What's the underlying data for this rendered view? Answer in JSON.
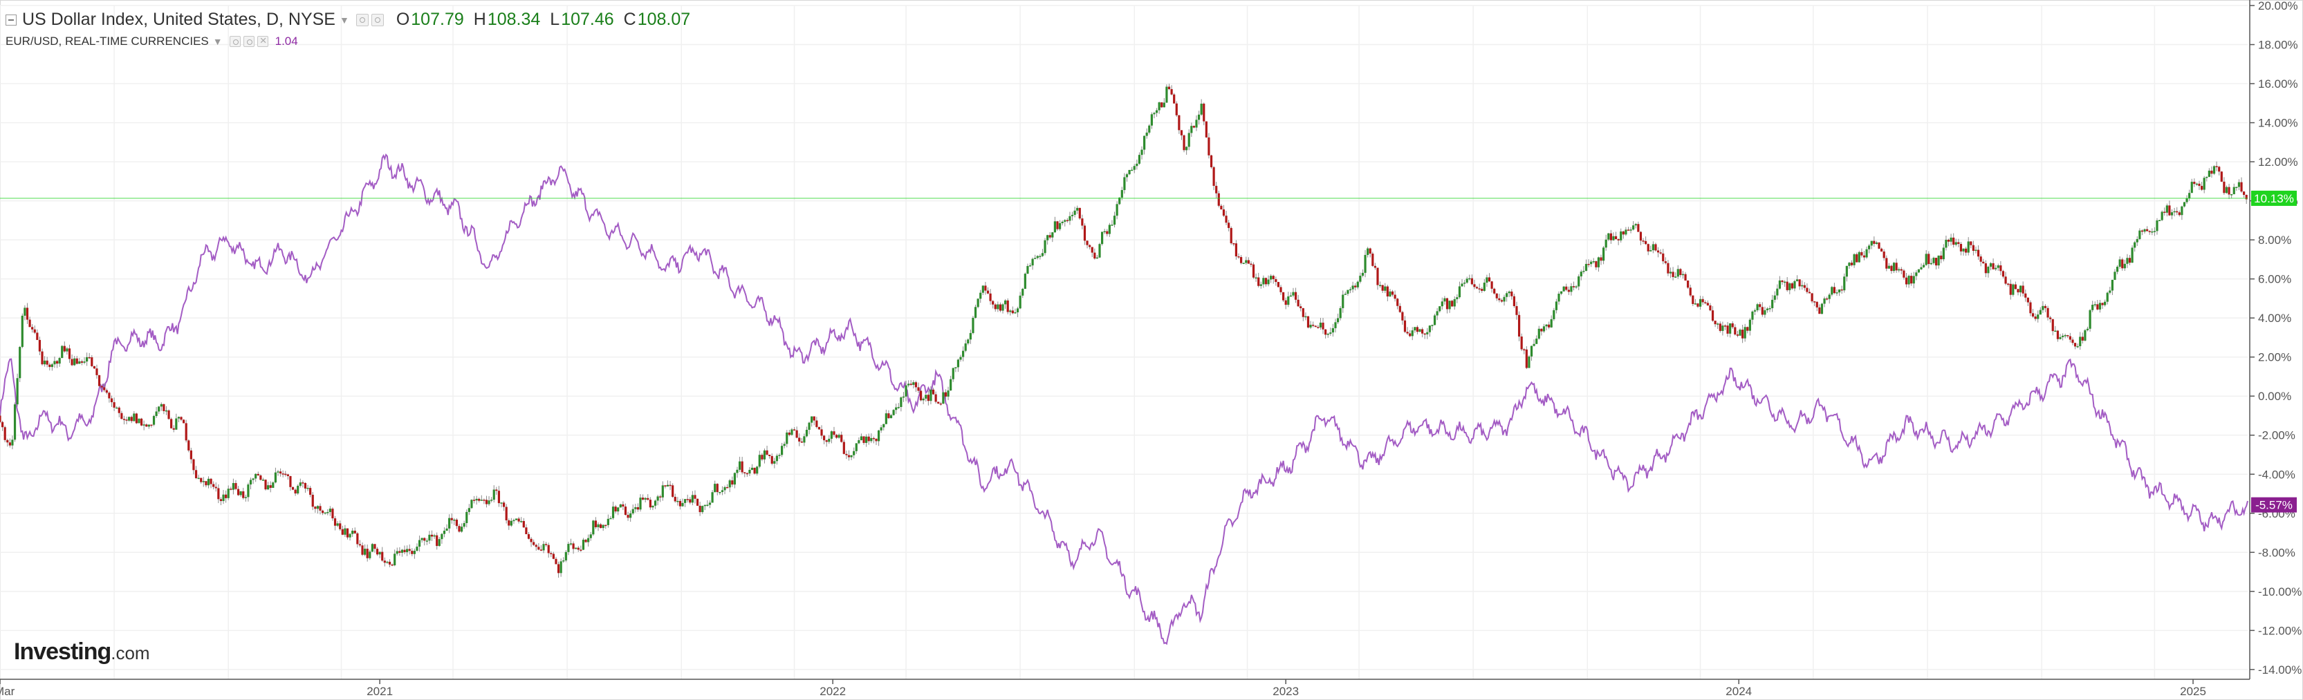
{
  "legend": {
    "main_title": "US Dollar Index, United States, D, NYSE",
    "ohlc": [
      {
        "key": "O",
        "value": "107.79"
      },
      {
        "key": "H",
        "value": "108.34"
      },
      {
        "key": "L",
        "value": "107.46"
      },
      {
        "key": "C",
        "value": "108.07"
      }
    ],
    "sub_title": "EUR/USD, REAL-TIME CURRENCIES",
    "sub_value": "1.04"
  },
  "logo": {
    "brand": "Investing",
    "suffix": ".com"
  },
  "colors": {
    "up": "#2e8b2e",
    "down": "#b01818",
    "wick": "#8a8a8a",
    "overlay": "#a35cc4",
    "last_dxy": "#1fd41f",
    "last_eur": "#8a1f8f",
    "grid": "#f0f0f0",
    "axis_text": "#555555"
  },
  "chart_data": {
    "type": "candlestick",
    "overlay_type": "line",
    "y_unit": "percent change",
    "ylim": [
      -14.5,
      20
    ],
    "y_ticks": [
      {
        "v": 20,
        "label": "20.00%"
      },
      {
        "v": 18,
        "label": "18.00%"
      },
      {
        "v": 16,
        "label": "16.00%"
      },
      {
        "v": 14,
        "label": "14.00%"
      },
      {
        "v": 12,
        "label": "12.00%"
      },
      {
        "v": 10,
        "label": "10.00%"
      },
      {
        "v": 8,
        "label": "8.00%"
      },
      {
        "v": 6,
        "label": "6.00%"
      },
      {
        "v": 4,
        "label": "4.00%"
      },
      {
        "v": 2,
        "label": "2.00%"
      },
      {
        "v": 0,
        "label": "0.00%"
      },
      {
        "v": -2,
        "label": "-2.00%"
      },
      {
        "v": -4,
        "label": "-4.00%"
      },
      {
        "v": -6,
        "label": "-6.00%"
      },
      {
        "v": -8,
        "label": "-8.00%"
      },
      {
        "v": -10,
        "label": "-10.00%"
      },
      {
        "v": -12,
        "label": "-12.00%"
      },
      {
        "v": -14,
        "label": "-14.00%"
      }
    ],
    "xlim": [
      "2020-03-01",
      "2025-02-14"
    ],
    "x_ticks": [
      {
        "date": "2020-03-01",
        "label": "Mar"
      },
      {
        "date": "2021-01-01",
        "label": "2021"
      },
      {
        "date": "2022-01-01",
        "label": "2022"
      },
      {
        "date": "2023-01-01",
        "label": "2023"
      },
      {
        "date": "2024-01-01",
        "label": "2024"
      },
      {
        "date": "2025-01-01",
        "label": "2025"
      }
    ],
    "series": [
      {
        "name": "US Dollar Index",
        "style": "candles",
        "last_label": "10.13%",
        "last_value": 10.13,
        "points": [
          [
            "2020-03-01",
            -1.0
          ],
          [
            "2020-03-10",
            -3.0
          ],
          [
            "2020-03-20",
            4.8
          ],
          [
            "2020-04-05",
            1.5
          ],
          [
            "2020-04-25",
            2.2
          ],
          [
            "2020-05-15",
            1.5
          ],
          [
            "2020-06-01",
            -0.8
          ],
          [
            "2020-06-20",
            -1.5
          ],
          [
            "2020-07-10",
            -0.8
          ],
          [
            "2020-07-25",
            -1.5
          ],
          [
            "2020-08-10",
            -4.5
          ],
          [
            "2020-09-01",
            -5.0
          ],
          [
            "2020-09-25",
            -4.5
          ],
          [
            "2020-10-15",
            -4.0
          ],
          [
            "2020-11-05",
            -5.0
          ],
          [
            "2020-12-01",
            -6.8
          ],
          [
            "2021-01-06",
            -8.5
          ],
          [
            "2021-02-05",
            -7.5
          ],
          [
            "2021-03-05",
            -6.5
          ],
          [
            "2021-03-31",
            -5.0
          ],
          [
            "2021-04-20",
            -6.5
          ],
          [
            "2021-05-25",
            -8.5
          ],
          [
            "2021-06-20",
            -7.0
          ],
          [
            "2021-07-05",
            -6.0
          ],
          [
            "2021-08-05",
            -5.5
          ],
          [
            "2021-08-20",
            -4.8
          ],
          [
            "2021-09-15",
            -5.8
          ],
          [
            "2021-10-15",
            -4.0
          ],
          [
            "2021-11-15",
            -3.0
          ],
          [
            "2021-12-01",
            -2.0
          ],
          [
            "2021-12-20",
            -1.5
          ],
          [
            "2022-01-14",
            -2.8
          ],
          [
            "2022-02-05",
            -2.0
          ],
          [
            "2022-03-07",
            0.8
          ],
          [
            "2022-03-25",
            -0.5
          ],
          [
            "2022-04-15",
            2.0
          ],
          [
            "2022-05-01",
            5.5
          ],
          [
            "2022-05-25",
            4.0
          ],
          [
            "2022-06-14",
            7.5
          ],
          [
            "2022-07-14",
            9.5
          ],
          [
            "2022-08-01",
            7.0
          ],
          [
            "2022-08-25",
            11.0
          ],
          [
            "2022-09-28",
            16.0
          ],
          [
            "2022-10-10",
            13.0
          ],
          [
            "2022-10-25",
            14.5
          ],
          [
            "2022-11-10",
            9.0
          ],
          [
            "2022-12-01",
            6.5
          ],
          [
            "2023-01-05",
            5.0
          ],
          [
            "2023-02-01",
            3.0
          ],
          [
            "2023-03-08",
            7.0
          ],
          [
            "2023-04-14",
            3.0
          ],
          [
            "2023-05-31",
            6.0
          ],
          [
            "2023-06-30",
            5.0
          ],
          [
            "2023-07-14",
            2.0
          ],
          [
            "2023-08-15",
            5.5
          ],
          [
            "2023-10-03",
            8.8
          ],
          [
            "2023-11-01",
            7.0
          ],
          [
            "2023-12-27",
            3.0
          ],
          [
            "2024-02-14",
            6.0
          ],
          [
            "2024-03-08",
            4.5
          ],
          [
            "2024-04-16",
            8.0
          ],
          [
            "2024-05-15",
            6.0
          ],
          [
            "2024-06-25",
            8.0
          ],
          [
            "2024-07-25",
            6.5
          ],
          [
            "2024-09-27",
            2.5
          ],
          [
            "2024-10-20",
            5.0
          ],
          [
            "2024-11-22",
            8.5
          ],
          [
            "2024-12-20",
            9.5
          ],
          [
            "2025-01-13",
            11.5
          ],
          [
            "2025-02-14",
            10.13
          ]
        ]
      },
      {
        "name": "EUR/USD",
        "style": "line",
        "last_label": "-5.57%",
        "last_value": -5.57,
        "points": [
          [
            "2020-03-01",
            -0.5
          ],
          [
            "2020-03-10",
            1.8
          ],
          [
            "2020-03-20",
            -2.5
          ],
          [
            "2020-04-05",
            -1.0
          ],
          [
            "2020-04-25",
            -1.8
          ],
          [
            "2020-05-15",
            -1.0
          ],
          [
            "2020-06-01",
            2.5
          ],
          [
            "2020-06-20",
            3.0
          ],
          [
            "2020-07-10",
            2.8
          ],
          [
            "2020-07-25",
            4.0
          ],
          [
            "2020-08-10",
            7.0
          ],
          [
            "2020-09-01",
            8.0
          ],
          [
            "2020-09-25",
            6.5
          ],
          [
            "2020-10-15",
            7.5
          ],
          [
            "2020-11-05",
            6.0
          ],
          [
            "2020-12-01",
            8.5
          ],
          [
            "2021-01-06",
            12.0
          ],
          [
            "2021-02-05",
            10.5
          ],
          [
            "2021-03-05",
            9.5
          ],
          [
            "2021-03-31",
            6.5
          ],
          [
            "2021-04-20",
            9.0
          ],
          [
            "2021-05-25",
            11.5
          ],
          [
            "2021-06-20",
            9.5
          ],
          [
            "2021-07-05",
            8.5
          ],
          [
            "2021-08-05",
            7.5
          ],
          [
            "2021-08-20",
            6.5
          ],
          [
            "2021-09-15",
            7.5
          ],
          [
            "2021-10-15",
            5.5
          ],
          [
            "2021-11-15",
            4.0
          ],
          [
            "2021-12-01",
            2.0
          ],
          [
            "2021-12-20",
            2.5
          ],
          [
            "2022-01-14",
            3.5
          ],
          [
            "2022-02-05",
            2.0
          ],
          [
            "2022-03-07",
            -0.5
          ],
          [
            "2022-03-25",
            1.0
          ],
          [
            "2022-04-15",
            -2.0
          ],
          [
            "2022-05-01",
            -4.5
          ],
          [
            "2022-05-25",
            -3.5
          ],
          [
            "2022-06-14",
            -5.5
          ],
          [
            "2022-07-14",
            -8.5
          ],
          [
            "2022-08-01",
            -7.0
          ],
          [
            "2022-08-25",
            -9.5
          ],
          [
            "2022-09-28",
            -12.5
          ],
          [
            "2022-10-10",
            -10.5
          ],
          [
            "2022-10-25",
            -11.0
          ],
          [
            "2022-11-10",
            -7.5
          ],
          [
            "2022-12-01",
            -5.0
          ],
          [
            "2023-01-05",
            -3.5
          ],
          [
            "2023-02-01",
            -1.0
          ],
          [
            "2023-03-08",
            -3.5
          ],
          [
            "2023-04-14",
            -1.5
          ],
          [
            "2023-05-31",
            -2.0
          ],
          [
            "2023-06-30",
            -1.5
          ],
          [
            "2023-07-14",
            0.5
          ],
          [
            "2023-08-15",
            -1.0
          ],
          [
            "2023-10-03",
            -4.5
          ],
          [
            "2023-11-01",
            -3.0
          ],
          [
            "2023-12-27",
            1.0
          ],
          [
            "2024-02-14",
            -1.5
          ],
          [
            "2024-03-08",
            -0.5
          ],
          [
            "2024-04-16",
            -3.5
          ],
          [
            "2024-05-15",
            -1.5
          ],
          [
            "2024-06-25",
            -2.5
          ],
          [
            "2024-07-25",
            -1.5
          ],
          [
            "2024-09-27",
            1.5
          ],
          [
            "2024-10-20",
            -1.0
          ],
          [
            "2024-11-22",
            -4.5
          ],
          [
            "2024-12-20",
            -5.5
          ],
          [
            "2025-01-13",
            -6.5
          ],
          [
            "2025-02-14",
            -5.57
          ]
        ]
      }
    ],
    "reference_line": {
      "series": "US Dollar Index",
      "value": 10.13
    }
  }
}
